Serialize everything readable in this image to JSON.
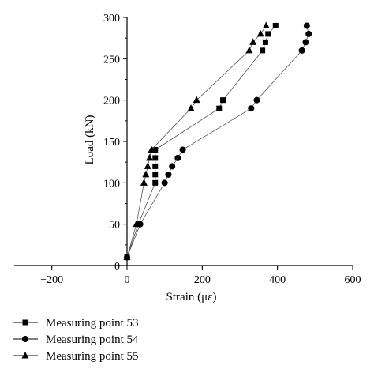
{
  "chart_data": {
    "type": "line",
    "xlabel": "Strain (με)",
    "ylabel": "Load (kN)",
    "xlim": [
      -300,
      600
    ],
    "ylim": [
      0,
      300
    ],
    "x_ticks": [
      -200,
      0,
      200,
      400,
      600
    ],
    "y_ticks": [
      0,
      50,
      100,
      150,
      200,
      250,
      300
    ],
    "legend_position": "bottom-left",
    "grid": false,
    "series": [
      {
        "name": "Measuring point 53",
        "marker": "square",
        "points": [
          [
            0,
            10
          ],
          [
            30,
            50
          ],
          [
            75,
            100
          ],
          [
            75,
            110
          ],
          [
            75,
            120
          ],
          [
            75,
            130
          ],
          [
            75,
            140
          ],
          [
            245,
            190
          ],
          [
            255,
            200
          ],
          [
            360,
            260
          ],
          [
            368,
            270
          ],
          [
            375,
            280
          ],
          [
            395,
            290
          ]
        ]
      },
      {
        "name": "Measuring point 54",
        "marker": "circle",
        "points": [
          [
            0,
            10
          ],
          [
            35,
            50
          ],
          [
            100,
            100
          ],
          [
            110,
            110
          ],
          [
            120,
            120
          ],
          [
            135,
            130
          ],
          [
            148,
            140
          ],
          [
            330,
            190
          ],
          [
            345,
            200
          ],
          [
            465,
            260
          ],
          [
            475,
            270
          ],
          [
            483,
            280
          ],
          [
            478,
            290
          ]
        ]
      },
      {
        "name": "Measuring point 55",
        "marker": "triangle",
        "points": [
          [
            0,
            10
          ],
          [
            25,
            50
          ],
          [
            45,
            100
          ],
          [
            50,
            110
          ],
          [
            55,
            120
          ],
          [
            60,
            130
          ],
          [
            65,
            140
          ],
          [
            170,
            190
          ],
          [
            185,
            200
          ],
          [
            325,
            260
          ],
          [
            335,
            270
          ],
          [
            355,
            280
          ],
          [
            370,
            290
          ]
        ]
      }
    ]
  }
}
